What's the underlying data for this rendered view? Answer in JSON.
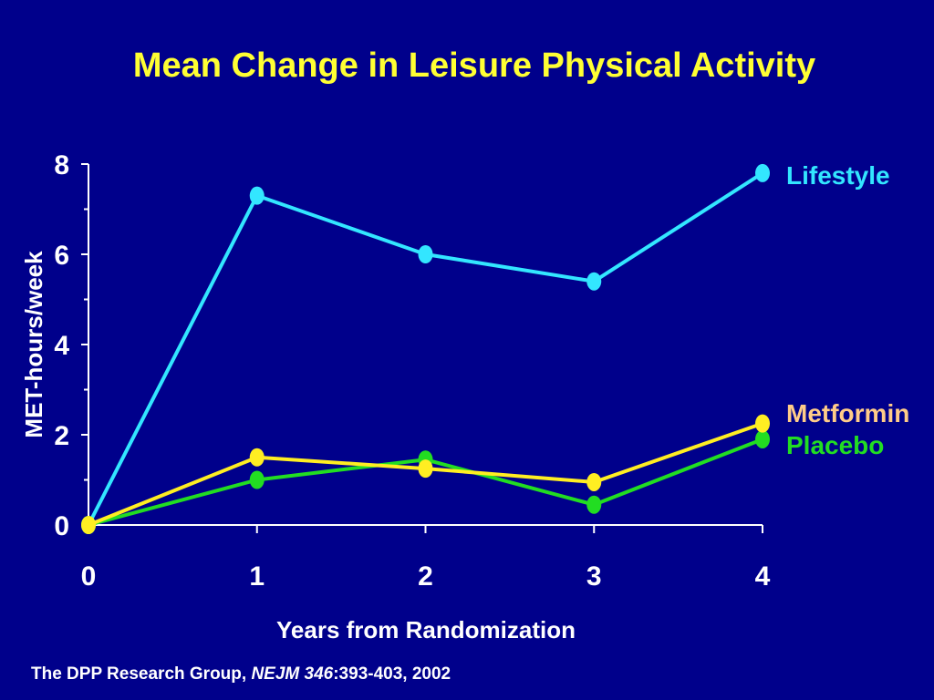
{
  "slide": {
    "title": "Mean Change in Leisure Physical Activity",
    "citation_prefix": "The DPP Research Group, ",
    "citation_journal": "NEJM 346",
    "citation_suffix": ":393-403, 2002"
  },
  "colors": {
    "background": "#00008B",
    "title": "#FFFF33",
    "axis": "#FFFFFF",
    "lifestyle": "#33E6FF",
    "metformin": "#FFEE22",
    "metformin_label": "#FFCC88",
    "placebo": "#22DD22"
  },
  "chart_data": {
    "type": "line",
    "title": "Mean Change in Leisure Physical Activity",
    "xlabel": "Years from Randomization",
    "ylabel": "MET-hours/week",
    "x": [
      0,
      1,
      2,
      3,
      4
    ],
    "x_ticks": [
      "0",
      "1",
      "2",
      "3",
      "4"
    ],
    "y_ticks": [
      "0",
      "2",
      "4",
      "6",
      "8"
    ],
    "xlim": [
      0,
      4
    ],
    "ylim": [
      0,
      8
    ],
    "grid": false,
    "legend_position": "right, inline at line ends",
    "series": [
      {
        "name": "Lifestyle",
        "values": [
          0,
          7.3,
          6.0,
          5.4,
          7.8
        ],
        "color": "#33E6FF",
        "label_color": "#33E6FF"
      },
      {
        "name": "Placebo",
        "values": [
          0,
          1.0,
          1.45,
          0.45,
          1.9
        ],
        "color": "#22DD22",
        "label_color": "#22DD22"
      },
      {
        "name": "Metformin",
        "values": [
          0,
          1.5,
          1.25,
          0.95,
          2.25
        ],
        "color": "#FFEE22",
        "label_color": "#FFCC88"
      }
    ]
  }
}
